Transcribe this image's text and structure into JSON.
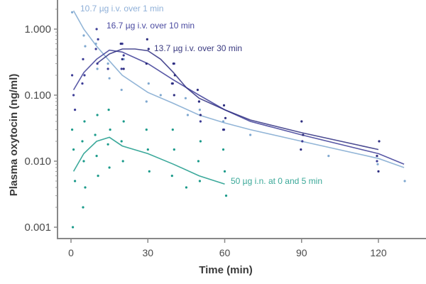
{
  "chart_data": {
    "type": "scatter",
    "title": "",
    "xlabel": "Time (min)",
    "ylabel": "Plasma oxytocin (ng/ml)",
    "xlim": [
      -3,
      135
    ],
    "ylim": [
      0.0008,
      2.5
    ],
    "yscale": "log",
    "x_ticks": [
      0,
      30,
      60,
      90,
      120
    ],
    "y_ticks": [
      1.0,
      0.1,
      0.01,
      0.001
    ],
    "y_tick_labels": [
      "1.000",
      "0.100",
      "0.010",
      "0.001"
    ],
    "grid": false,
    "legend": "inline labels next to curves",
    "series": [
      {
        "name": "10.7 µg i.v. over 1 min",
        "color": "#7fa8d0",
        "curve_x": [
          1,
          5,
          10,
          15,
          20,
          30,
          40,
          50,
          60,
          70,
          90,
          120,
          130
        ],
        "curve_y": [
          1.9,
          1.0,
          0.55,
          0.33,
          0.2,
          0.11,
          0.075,
          0.05,
          0.038,
          0.03,
          0.02,
          0.011,
          0.008
        ],
        "points_x": [
          1,
          5,
          5,
          10,
          10,
          15,
          15,
          20,
          20,
          30,
          30,
          35,
          45,
          45,
          50,
          60,
          70,
          100,
          120,
          130
        ],
        "points_y": [
          1.8,
          0.8,
          0.55,
          0.6,
          0.25,
          0.3,
          0.18,
          0.35,
          0.12,
          0.15,
          0.08,
          0.1,
          0.05,
          0.09,
          0.06,
          0.04,
          0.025,
          0.012,
          0.009,
          0.005
        ]
      },
      {
        "name": "16.7 µg i.v. over 10 min",
        "color": "#3c3c96",
        "curve_x": [
          1,
          5,
          10,
          15,
          20,
          30,
          40,
          50,
          60,
          70,
          90,
          120,
          130
        ],
        "curve_y": [
          0.12,
          0.22,
          0.35,
          0.48,
          0.45,
          0.3,
          0.17,
          0.1,
          0.06,
          0.04,
          0.025,
          0.013,
          0.009
        ],
        "points_x": [
          1,
          1,
          1,
          5,
          5,
          5,
          10,
          10,
          10,
          10,
          15,
          20,
          20,
          20,
          40,
          40,
          50,
          50,
          60,
          90,
          120
        ],
        "points_y": [
          0.2,
          0.1,
          0.06,
          0.35,
          0.2,
          0.15,
          1.0,
          0.7,
          0.5,
          0.3,
          0.25,
          0.6,
          0.4,
          0.25,
          0.3,
          0.15,
          0.08,
          0.04,
          0.03,
          0.02,
          0.01
        ]
      },
      {
        "name": "13.7 µg i.v. over 30 min",
        "color": "#2e2e80",
        "curve_x": [
          10,
          15,
          20,
          25,
          30,
          35,
          40,
          45,
          50,
          60,
          70,
          90,
          120
        ],
        "curve_y": [
          0.3,
          0.42,
          0.5,
          0.5,
          0.47,
          0.35,
          0.22,
          0.13,
          0.09,
          0.06,
          0.042,
          0.027,
          0.015
        ],
        "points_x": [
          20,
          20,
          20,
          30,
          30,
          30,
          40,
          40,
          40,
          40,
          50,
          50,
          50,
          60,
          60,
          60,
          90,
          90,
          90,
          120,
          120,
          120
        ],
        "points_y": [
          0.6,
          0.35,
          0.25,
          0.7,
          0.5,
          0.3,
          0.3,
          0.2,
          0.15,
          0.1,
          0.12,
          0.08,
          0.05,
          0.07,
          0.045,
          0.03,
          0.04,
          0.025,
          0.015,
          0.02,
          0.012,
          0.007
        ]
      },
      {
        "name": "50 µg i.n. at 0 and 5 min",
        "color": "#1a9a8a",
        "curve_x": [
          1,
          5,
          10,
          15,
          20,
          30,
          40,
          50,
          60
        ],
        "curve_y": [
          0.007,
          0.013,
          0.02,
          0.023,
          0.017,
          0.013,
          0.009,
          0.006,
          0.0045
        ],
        "points_x": [
          1,
          1,
          1,
          1,
          5,
          5,
          5,
          5,
          5,
          10,
          10,
          10,
          10,
          15,
          15,
          15,
          15,
          20,
          20,
          20,
          30,
          30,
          30,
          40,
          40,
          40,
          45,
          50,
          50,
          50,
          60,
          60,
          60
        ],
        "points_y": [
          0.03,
          0.015,
          0.005,
          0.001,
          0.04,
          0.02,
          0.01,
          0.004,
          0.002,
          0.05,
          0.025,
          0.012,
          0.006,
          0.06,
          0.03,
          0.018,
          0.008,
          0.04,
          0.02,
          0.01,
          0.03,
          0.015,
          0.007,
          0.03,
          0.015,
          0.006,
          0.004,
          0.02,
          0.01,
          0.005,
          0.015,
          0.007,
          0.003
        ]
      }
    ]
  },
  "labels": {
    "series_1": "10.7 µg i.v. over 1 min",
    "series_2": "16.7 µg i.v. over 10 min",
    "series_3": "13.7 µg i.v. over 30 min",
    "series_4": "50 µg  i.n. at 0 and 5 min",
    "xlabel": "Time (min)",
    "ylabel": "Plasma oxytocin (ng/ml)"
  }
}
